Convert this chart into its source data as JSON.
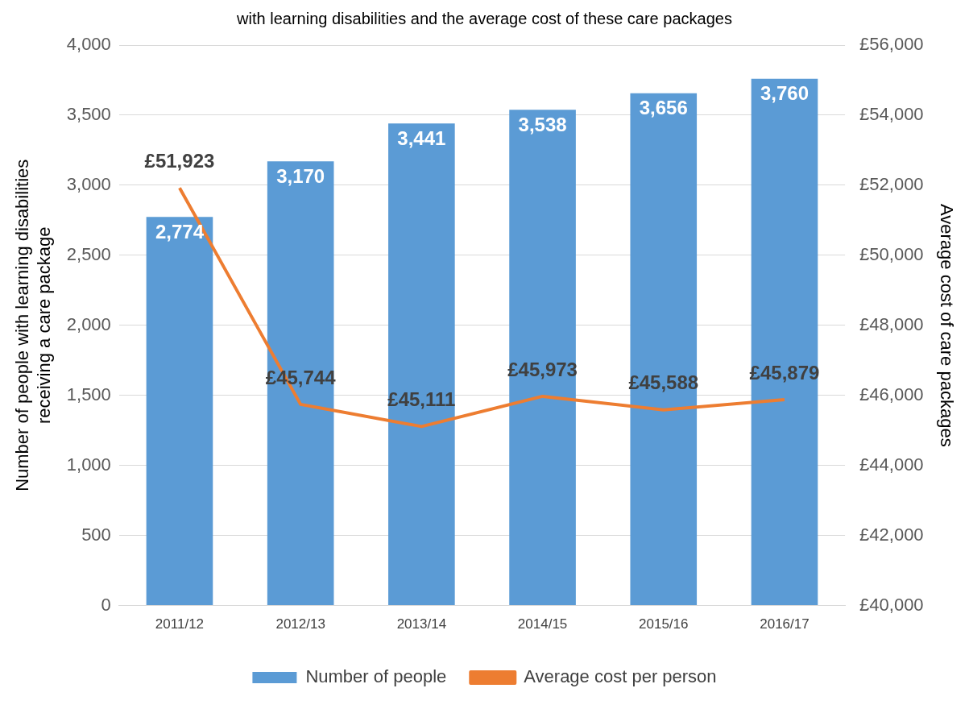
{
  "chart_data": {
    "type": "bar",
    "title": "with learning disabilities and the average cost of these care packages",
    "categories": [
      "2011/12",
      "2012/13",
      "2013/14",
      "2014/15",
      "2015/16",
      "2016/17"
    ],
    "series": [
      {
        "name": "Number of people",
        "color": "#5b9bd5",
        "values": [
          2774,
          3170,
          3441,
          3538,
          3656,
          3760
        ],
        "value_labels": [
          "2,774",
          "3,170",
          "3,441",
          "3,538",
          "3,656",
          "3,760"
        ]
      },
      {
        "name": "Average cost per person",
        "type": "line",
        "axis": "y2",
        "color": "#ed7d31",
        "values": [
          51923,
          45744,
          45111,
          45973,
          45588,
          45879
        ],
        "value_labels": [
          "£51,923",
          "£45,744",
          "£45,111",
          "£45,973",
          "£45,588",
          "£45,879"
        ]
      }
    ],
    "ylabel": "Number of people with learning disabilities receiving a care package",
    "y2label": "Average cost of care packages",
    "ylim": [
      0,
      4000
    ],
    "yticks": [
      0,
      {
        "value": 500,
        "label": "500"
      },
      {
        "value": 1000,
        "label": "1,000"
      },
      {
        "value": 1500,
        "label": "1,500"
      },
      {
        "value": 2000,
        "label": "2,000"
      },
      {
        "value": 2500,
        "label": "2,500"
      },
      {
        "value": 3000,
        "label": "3,000"
      },
      {
        "value": 3500,
        "label": "3,500"
      },
      {
        "value": 4000,
        "label": "4,000"
      }
    ],
    "y2lim": [
      40000,
      56000
    ],
    "y2ticks": [
      {
        "value": 40000,
        "label": "£40,000"
      },
      {
        "value": 42000,
        "label": "£42,000"
      },
      {
        "value": 44000,
        "label": "£44,000"
      },
      {
        "value": 46000,
        "label": "£46,000"
      },
      {
        "value": 48000,
        "label": "£48,000"
      },
      {
        "value": 50000,
        "label": "£50,000"
      },
      {
        "value": 52000,
        "label": "£52,000"
      },
      {
        "value": 54000,
        "label": "£54,000"
      },
      {
        "value": 56000,
        "label": "£56,000"
      }
    ],
    "grid": "y",
    "legend": "bottom",
    "marker": "none",
    "line_style": "solid"
  }
}
